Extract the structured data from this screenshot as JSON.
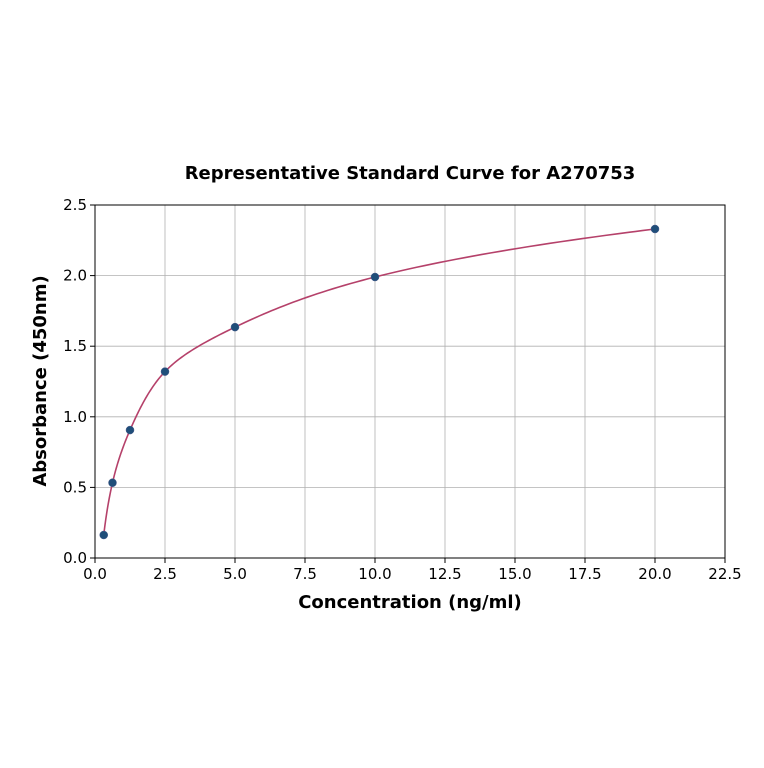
{
  "chart_data": {
    "type": "scatter",
    "title": "Representative Standard Curve for A270753",
    "xlabel": "Concentration (ng/ml)",
    "ylabel": "Absorbance (450nm)",
    "xlim": [
      0,
      22.5
    ],
    "ylim": [
      0,
      2.5
    ],
    "xticks": [
      "0.0",
      "2.5",
      "5.0",
      "7.5",
      "10.0",
      "12.5",
      "15.0",
      "17.5",
      "20.0",
      "22.5"
    ],
    "yticks": [
      "0.0",
      "0.5",
      "1.0",
      "1.5",
      "2.0",
      "2.5"
    ],
    "grid": true,
    "x": [
      0.3125,
      0.625,
      1.25,
      2.5,
      5,
      10,
      20
    ],
    "y": [
      0.163,
      0.533,
      0.906,
      1.32,
      1.635,
      1.99,
      2.33
    ],
    "fit_curve": true,
    "colors": {
      "points": "#1f4e79",
      "curve": "#b5416a",
      "grid": "#b0b0b0"
    }
  }
}
